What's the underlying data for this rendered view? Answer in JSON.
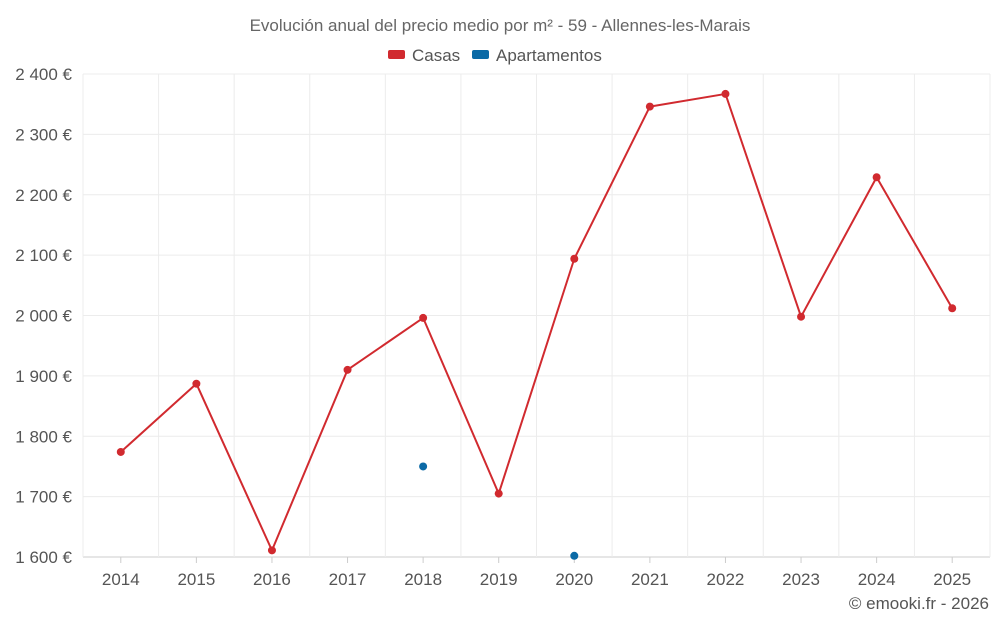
{
  "chart_data": {
    "type": "line",
    "title": "Evolución anual del precio medio por m² - 59 - Allennes-les-Marais",
    "categories": [
      "2014",
      "2015",
      "2016",
      "2017",
      "2018",
      "2019",
      "2020",
      "2021",
      "2022",
      "2023",
      "2024",
      "2025"
    ],
    "ylim": [
      1600,
      2400
    ],
    "yticks": [
      1600,
      1700,
      1800,
      1900,
      2000,
      2100,
      2200,
      2300,
      2400
    ],
    "ytick_labels": [
      "1 600 €",
      "1 700 €",
      "1 800 €",
      "1 900 €",
      "2 000 €",
      "2 100 €",
      "2 200 €",
      "2 300 €",
      "2 400 €"
    ],
    "grid": true,
    "legend_position": "top-center",
    "series": [
      {
        "name": "Casas",
        "color": "#d12a2f",
        "values": [
          1774,
          1887,
          1611,
          1910,
          1996,
          1705,
          2094,
          2346,
          2367,
          1998,
          2229,
          2012
        ]
      },
      {
        "name": "Apartamentos",
        "color": "#0b6aa6",
        "values": [
          null,
          null,
          null,
          null,
          1750,
          null,
          1602,
          null,
          null,
          null,
          null,
          null
        ]
      }
    ],
    "credit": "© emooki.fr - 2026"
  }
}
